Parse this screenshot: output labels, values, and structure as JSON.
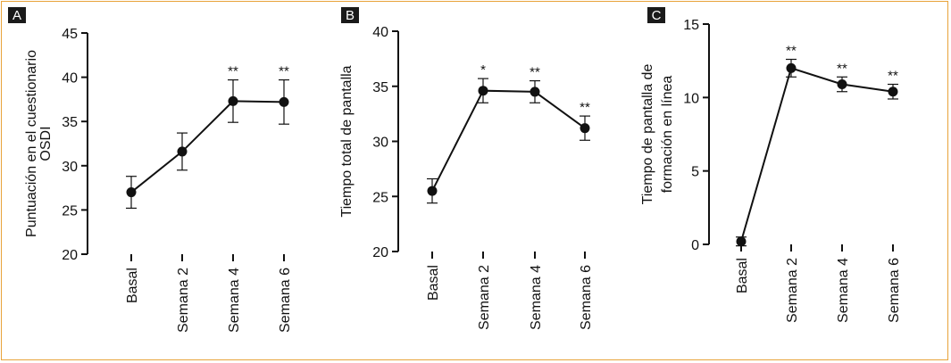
{
  "chart_data": [
    {
      "panel": "A",
      "type": "line",
      "ylabel": "Puntuación en el cuestionario OSDI",
      "ylabel_lines": [
        "Puntuación en el cuestionario",
        "OSDI"
      ],
      "categories": [
        "Basal",
        "Semana 2",
        "Semana 4",
        "Semana 6"
      ],
      "values": [
        27.0,
        31.6,
        37.3,
        37.2
      ],
      "error": [
        1.8,
        2.1,
        2.4,
        2.5
      ],
      "significance": [
        "",
        "",
        "**",
        "**"
      ],
      "ylim": [
        20,
        45
      ],
      "yticks": [
        20,
        25,
        30,
        35,
        40,
        45
      ]
    },
    {
      "panel": "B",
      "type": "line",
      "ylabel": "Tiempo total de pantalla",
      "ylabel_lines": [
        "Tiempo total de pantalla"
      ],
      "categories": [
        "Basal",
        "Semana 2",
        "Semana 4",
        "Semana 6"
      ],
      "values": [
        25.5,
        34.6,
        34.5,
        31.2
      ],
      "error": [
        1.1,
        1.1,
        1.0,
        1.1
      ],
      "significance": [
        "",
        "*",
        "**",
        "**"
      ],
      "ylim": [
        20,
        40
      ],
      "yticks": [
        20,
        25,
        30,
        35,
        40
      ]
    },
    {
      "panel": "C",
      "type": "line",
      "ylabel": "Tiempo de pantalla de formación en línea",
      "ylabel_lines": [
        "Tiempo de pantalla de",
        "formación en línea"
      ],
      "categories": [
        "Basal",
        "Semana 2",
        "Semana 4",
        "Semana 6"
      ],
      "values": [
        0.2,
        12.0,
        10.9,
        10.4
      ],
      "error": [
        0.3,
        0.6,
        0.5,
        0.5
      ],
      "significance": [
        "",
        "**",
        "**",
        "**"
      ],
      "ylim": [
        0,
        15
      ],
      "yticks": [
        0,
        5,
        10,
        15
      ]
    }
  ],
  "colors": {
    "border": "#e8a33a",
    "ink": "#111111",
    "badge": "#1a1a1a"
  }
}
